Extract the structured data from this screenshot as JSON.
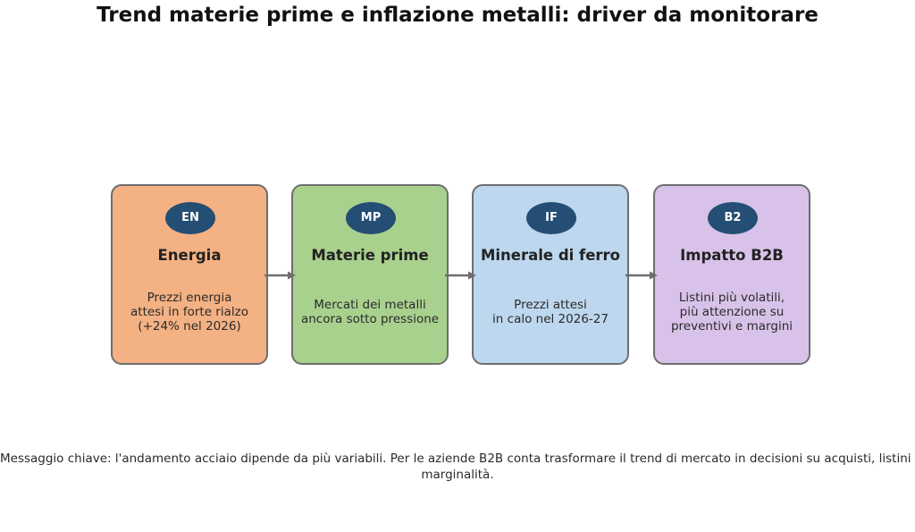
{
  "title": "Trend materie prime e inflazione metalli: driver da monitorare",
  "cards": [
    {
      "badge": "EN",
      "title": "Energia",
      "desc_lines": [
        "Prezzi energia",
        "attesi in forte rialzo",
        "(+24% nel 2026)"
      ],
      "color": "#f4b183"
    },
    {
      "badge": "MP",
      "title": "Materie prime",
      "desc_lines": [
        "Mercati dei metalli",
        "ancora sotto pressione"
      ],
      "color": "#a9d18e"
    },
    {
      "badge": "IF",
      "title": "Minerale di ferro",
      "desc_lines": [
        "Prezzi attesi",
        "in calo nel 2026-27"
      ],
      "color": "#bdd7ee"
    },
    {
      "badge": "B2",
      "title": "Impatto B2B",
      "desc_lines": [
        "Listini più volatili,",
        "più attenzione su",
        "preventivi e margini"
      ],
      "color": "#d9c2e9"
    }
  ],
  "colors": {
    "badge": "#244e74",
    "border": "#6e6e6e",
    "arrow": "#6e6e6e"
  },
  "message_lines": [
    "Messaggio chiave: l'andamento acciaio dipende da più variabili. Per le aziende B2B conta trasformare il trend di mercato in decisioni su acquisti, listini e",
    "marginalità."
  ]
}
